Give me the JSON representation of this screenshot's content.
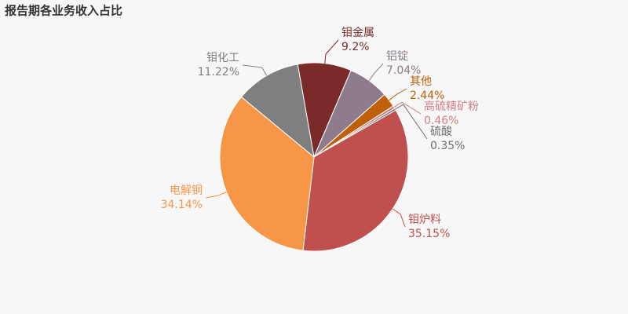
{
  "chart_data": {
    "type": "pie",
    "title": "报告期各业务收入占比",
    "categories": [
      "钼金属",
      "铝锭",
      "其他",
      "高硫精矿粉",
      "硫酸",
      "钼炉料",
      "电解铜",
      "钼化工"
    ],
    "values": [
      9.2,
      7.04,
      2.44,
      0.46,
      0.35,
      35.15,
      34.14,
      11.22
    ],
    "value_labels": [
      "9.2%",
      "7.04%",
      "2.44%",
      "0.46%",
      "0.35%",
      "35.15%",
      "34.14%",
      "11.22%"
    ],
    "colors": [
      "#7b2a2a",
      "#8e7b8b",
      "#c0600a",
      "#d08080",
      "#6e6e6e",
      "#c0504d",
      "#f79646",
      "#7f7f7f"
    ]
  }
}
